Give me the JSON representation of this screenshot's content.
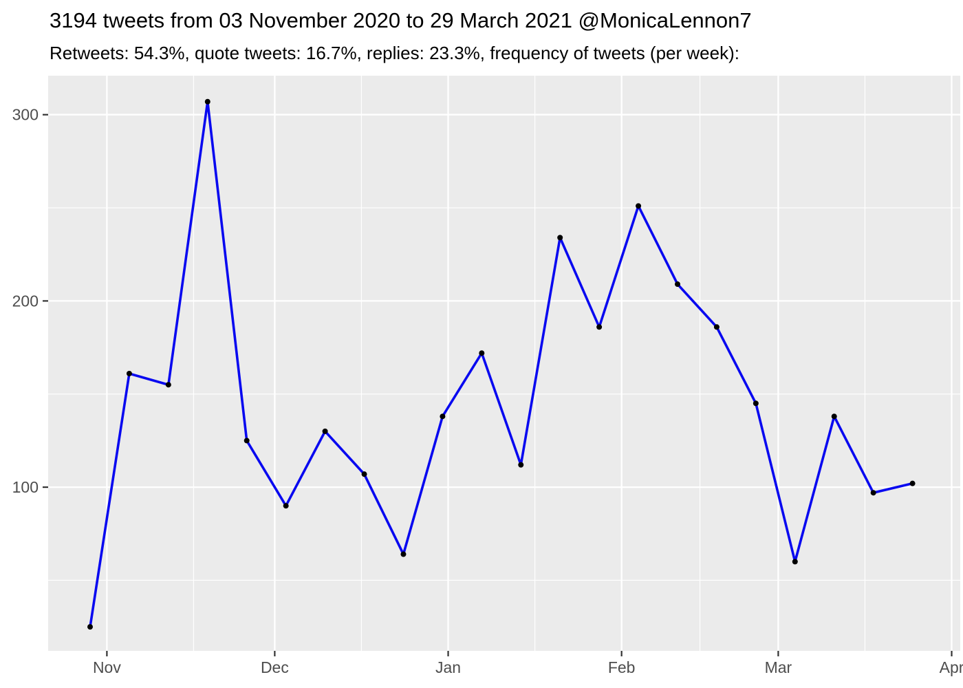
{
  "header": {
    "title": "3194 tweets from 03 November 2020 to 29 March 2021 @MonicaLennon7",
    "subtitle": "Retweets: 54.3%, quote tweets: 16.7%, replies: 23.3%, frequency of tweets (per week):"
  },
  "chart_data": {
    "type": "line",
    "title": "3194 tweets from 03 November 2020 to 29 March 2021 @MonicaLennon7",
    "subtitle": "Retweets: 54.3%, quote tweets: 16.7%, replies: 23.3%, frequency of tweets (per week):",
    "total_tweets": 3194,
    "series_name": "tweets per week",
    "points": [
      {
        "week_start": "2020-10-29",
        "value": 25
      },
      {
        "week_start": "2020-11-05",
        "value": 161
      },
      {
        "week_start": "2020-11-12",
        "value": 155
      },
      {
        "week_start": "2020-11-19",
        "value": 307
      },
      {
        "week_start": "2020-11-26",
        "value": 125
      },
      {
        "week_start": "2020-12-03",
        "value": 90
      },
      {
        "week_start": "2020-12-10",
        "value": 130
      },
      {
        "week_start": "2020-12-17",
        "value": 107
      },
      {
        "week_start": "2020-12-24",
        "value": 64
      },
      {
        "week_start": "2020-12-31",
        "value": 138
      },
      {
        "week_start": "2021-01-07",
        "value": 172
      },
      {
        "week_start": "2021-01-14",
        "value": 112
      },
      {
        "week_start": "2021-01-21",
        "value": 234
      },
      {
        "week_start": "2021-01-28",
        "value": 186
      },
      {
        "week_start": "2021-02-04",
        "value": 251
      },
      {
        "week_start": "2021-02-11",
        "value": 209
      },
      {
        "week_start": "2021-02-18",
        "value": 186
      },
      {
        "week_start": "2021-02-25",
        "value": 145
      },
      {
        "week_start": "2021-03-04",
        "value": 60
      },
      {
        "week_start": "2021-03-11",
        "value": 138
      },
      {
        "week_start": "2021-03-18",
        "value": 97
      },
      {
        "week_start": "2021-03-25",
        "value": 102
      }
    ],
    "x_axis": {
      "ticks": [
        {
          "label": "Nov",
          "day": 3
        },
        {
          "label": "Dec",
          "day": 33
        },
        {
          "label": "Jan",
          "day": 64
        },
        {
          "label": "Feb",
          "day": 95
        },
        {
          "label": "Mar",
          "day": 123
        },
        {
          "label": "Apr",
          "day": 154
        }
      ],
      "minor_days": [
        18.5,
        48.5,
        79.5,
        109,
        138.5
      ]
    },
    "y_axis": {
      "ticks": [
        {
          "label": "100",
          "value": 100
        },
        {
          "label": "200",
          "value": 200
        },
        {
          "label": "300",
          "value": 300
        }
      ],
      "minor_values": [
        50,
        150,
        250
      ]
    },
    "ylim": [
      11,
      321
    ],
    "grid": true,
    "legend_position": "none",
    "colors": {
      "line": "#0808F0",
      "point": "#000000",
      "panel_bg": "#EBEBEB",
      "grid": "#FFFFFF",
      "axis_text": "#4D4D4D",
      "tick_mark": "#333333",
      "title_text": "#000000"
    }
  }
}
